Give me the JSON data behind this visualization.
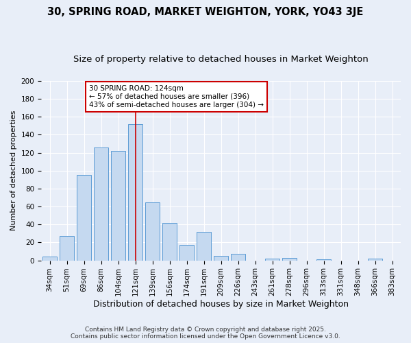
{
  "title": "30, SPRING ROAD, MARKET WEIGHTON, YORK, YO43 3JE",
  "subtitle": "Size of property relative to detached houses in Market Weighton",
  "xlabel": "Distribution of detached houses by size in Market Weighton",
  "ylabel": "Number of detached properties",
  "categories": [
    "34sqm",
    "51sqm",
    "69sqm",
    "86sqm",
    "104sqm",
    "121sqm",
    "139sqm",
    "156sqm",
    "174sqm",
    "191sqm",
    "209sqm",
    "226sqm",
    "243sqm",
    "261sqm",
    "278sqm",
    "296sqm",
    "313sqm",
    "331sqm",
    "348sqm",
    "366sqm",
    "383sqm"
  ],
  "values": [
    4,
    27,
    95,
    126,
    122,
    152,
    65,
    42,
    17,
    32,
    5,
    7,
    0,
    2,
    3,
    0,
    1,
    0,
    0,
    2,
    0
  ],
  "bar_color": "#c5d9f0",
  "bar_edge_color": "#5b9bd5",
  "annotation_line1": "30 SPRING ROAD: 124sqm",
  "annotation_line2": "← 57% of detached houses are smaller (396)",
  "annotation_line3": "43% of semi-detached houses are larger (304) →",
  "annotation_box_color": "#ffffff",
  "annotation_box_edge_color": "#cc0000",
  "vline_color": "#cc0000",
  "vline_x_index": 5,
  "ylim": [
    0,
    200
  ],
  "yticks": [
    0,
    20,
    40,
    60,
    80,
    100,
    120,
    140,
    160,
    180,
    200
  ],
  "bg_color": "#e8eef8",
  "grid_color": "#ffffff",
  "footer": "Contains HM Land Registry data © Crown copyright and database right 2025.\nContains public sector information licensed under the Open Government Licence v3.0.",
  "title_fontsize": 10.5,
  "subtitle_fontsize": 9.5,
  "ylabel_fontsize": 8,
  "xlabel_fontsize": 9,
  "tick_fontsize": 7.5,
  "annotation_fontsize": 7.5,
  "footer_fontsize": 6.5
}
